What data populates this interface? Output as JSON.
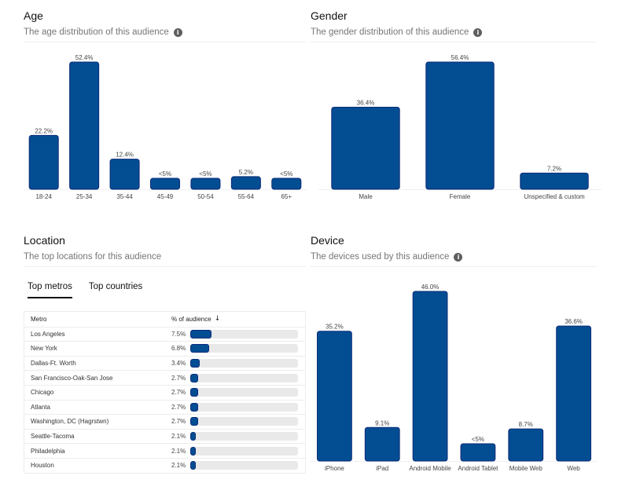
{
  "colors": {
    "bar": "#034d92",
    "bar_stroke": "#0d2c7a",
    "track": "#e9e9e9",
    "muted": "#767676"
  },
  "age": {
    "title": "Age",
    "subtitle": "The age distribution of this audience",
    "info_icon": "info-icon"
  },
  "gender": {
    "title": "Gender",
    "subtitle": "The gender distribution of this audience",
    "info_icon": "info-icon"
  },
  "location": {
    "title": "Location",
    "subtitle": "The top locations for this audience",
    "tabs": [
      {
        "label": "Top metros",
        "active": true
      },
      {
        "label": "Top countries",
        "active": false
      }
    ],
    "table": {
      "col_metro": "Metro",
      "col_pct": "% of audience",
      "sort_icon": "arrow-down-icon",
      "rows": [
        {
          "metro": "Los Angeles",
          "pct_label": "7.5%",
          "value": 7.5
        },
        {
          "metro": "New York",
          "pct_label": "6.8%",
          "value": 6.8
        },
        {
          "metro": "Dallas-Ft. Worth",
          "pct_label": "3.4%",
          "value": 3.4
        },
        {
          "metro": "San Francisco-Oak-San Jose",
          "pct_label": "2.7%",
          "value": 2.7
        },
        {
          "metro": "Chicago",
          "pct_label": "2.7%",
          "value": 2.7
        },
        {
          "metro": "Atlanta",
          "pct_label": "2.7%",
          "value": 2.7
        },
        {
          "metro": "Washington, DC (Hagrstwn)",
          "pct_label": "2.7%",
          "value": 2.7
        },
        {
          "metro": "Seattle-Tacoma",
          "pct_label": "2.1%",
          "value": 2.1
        },
        {
          "metro": "Philadelphia",
          "pct_label": "2.1%",
          "value": 2.1
        },
        {
          "metro": "Houston",
          "pct_label": "2.1%",
          "value": 2.1
        }
      ]
    }
  },
  "device": {
    "title": "Device",
    "subtitle": "The devices used by this audience",
    "info_icon": "info-icon"
  },
  "chart_data": [
    {
      "id": "age",
      "type": "bar",
      "title": "Age",
      "categories": [
        "18-24",
        "25-34",
        "35-44",
        "45-49",
        "50-54",
        "55-64",
        "65+"
      ],
      "values": [
        22.2,
        52.4,
        12.4,
        4,
        4,
        5.2,
        4
      ],
      "labels": [
        "22.2%",
        "52.4%",
        "12.4%",
        "<5%",
        "<5%",
        "5.2%",
        "<5%"
      ],
      "ylim": [
        0,
        52.4
      ],
      "grid": false
    },
    {
      "id": "gender",
      "type": "bar",
      "title": "Gender",
      "categories": [
        "Male",
        "Female",
        "Unspecified & custom"
      ],
      "values": [
        36.4,
        56.4,
        7.2
      ],
      "labels": [
        "36.4%",
        "56.4%",
        "7.2%"
      ],
      "ylim": [
        0,
        56.4
      ],
      "grid": false
    },
    {
      "id": "device",
      "type": "bar",
      "title": "Device",
      "categories": [
        "iPhone",
        "iPad",
        "Android Mobile",
        "Android Tablet",
        "Mobile Web",
        "Web"
      ],
      "values": [
        35.2,
        9.1,
        46.0,
        4,
        8.7,
        36.6
      ],
      "labels": [
        "35.2%",
        "9.1%",
        "46.0%",
        "<5%",
        "8.7%",
        "36.6%"
      ],
      "ylim": [
        0,
        46.0
      ],
      "grid": false
    },
    {
      "id": "metros",
      "type": "table",
      "title": "Top metros",
      "categories": [
        "Los Angeles",
        "New York",
        "Dallas-Ft. Worth",
        "San Francisco-Oak-San Jose",
        "Chicago",
        "Atlanta",
        "Washington, DC (Hagrstwn)",
        "Seattle-Tacoma",
        "Philadelphia",
        "Houston"
      ],
      "values": [
        7.5,
        6.8,
        3.4,
        2.7,
        2.7,
        2.7,
        2.7,
        2.1,
        2.1,
        2.1
      ],
      "ylim": [
        0,
        100
      ]
    }
  ]
}
